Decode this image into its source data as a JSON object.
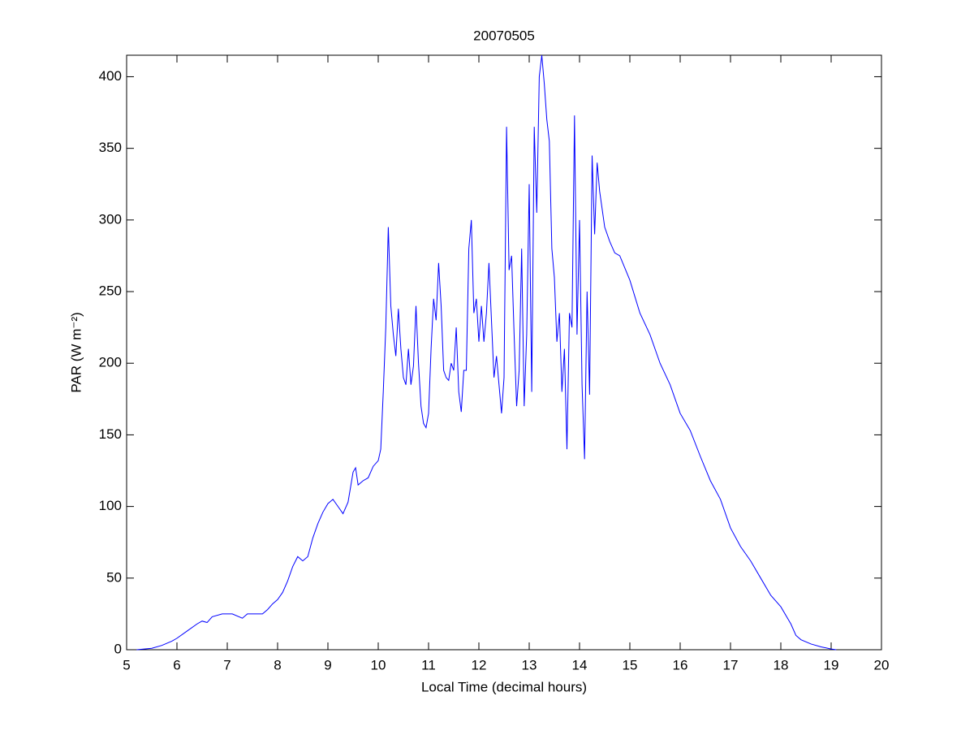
{
  "chart_data": {
    "type": "line",
    "title": "20070505",
    "xlabel": "Local Time (decimal hours)",
    "ylabel": "PAR (W m⁻²)",
    "x": [
      5.2,
      5.5,
      5.7,
      5.9,
      6.0,
      6.2,
      6.4,
      6.5,
      6.6,
      6.7,
      6.9,
      7.1,
      7.3,
      7.4,
      7.6,
      7.7,
      7.8,
      7.9,
      8.0,
      8.1,
      8.2,
      8.3,
      8.4,
      8.5,
      8.6,
      8.7,
      8.8,
      8.9,
      9.0,
      9.1,
      9.2,
      9.3,
      9.4,
      9.5,
      9.55,
      9.6,
      9.7,
      9.8,
      9.9,
      10.0,
      10.05,
      10.1,
      10.15,
      10.2,
      10.25,
      10.3,
      10.35,
      10.4,
      10.45,
      10.5,
      10.55,
      10.6,
      10.65,
      10.7,
      10.75,
      10.8,
      10.85,
      10.9,
      10.95,
      11.0,
      11.05,
      11.1,
      11.15,
      11.2,
      11.25,
      11.3,
      11.35,
      11.4,
      11.45,
      11.5,
      11.55,
      11.6,
      11.65,
      11.7,
      11.75,
      11.8,
      11.85,
      11.9,
      11.95,
      12.0,
      12.05,
      12.1,
      12.15,
      12.2,
      12.25,
      12.3,
      12.35,
      12.4,
      12.45,
      12.5,
      12.55,
      12.6,
      12.65,
      12.7,
      12.75,
      12.8,
      12.85,
      12.9,
      12.95,
      13.0,
      13.05,
      13.1,
      13.15,
      13.2,
      13.25,
      13.3,
      13.35,
      13.4,
      13.45,
      13.5,
      13.55,
      13.6,
      13.65,
      13.7,
      13.75,
      13.8,
      13.85,
      13.9,
      13.95,
      14.0,
      14.05,
      14.1,
      14.15,
      14.2,
      14.25,
      14.3,
      14.35,
      14.4,
      14.5,
      14.6,
      14.7,
      14.8,
      15.0,
      15.2,
      15.4,
      15.6,
      15.8,
      16.0,
      16.2,
      16.4,
      16.6,
      16.8,
      17.0,
      17.2,
      17.4,
      17.6,
      17.8,
      18.0,
      18.2,
      18.3,
      18.4,
      18.6,
      18.8,
      19.0,
      19.1
    ],
    "values": [
      0,
      1,
      3,
      6,
      8,
      13,
      18,
      20,
      19,
      23,
      25,
      25,
      22,
      25,
      25,
      25,
      28,
      32,
      35,
      40,
      48,
      58,
      65,
      62,
      65,
      78,
      88,
      96,
      102,
      105,
      100,
      95,
      103,
      124,
      127,
      115,
      118,
      120,
      128,
      132,
      140,
      180,
      225,
      295,
      240,
      220,
      205,
      238,
      210,
      190,
      185,
      210,
      185,
      198,
      240,
      200,
      170,
      158,
      155,
      165,
      210,
      245,
      230,
      270,
      240,
      195,
      190,
      188,
      200,
      195,
      225,
      180,
      166,
      195,
      195,
      280,
      300,
      235,
      245,
      215,
      240,
      215,
      235,
      270,
      230,
      190,
      205,
      185,
      165,
      190,
      365,
      265,
      275,
      220,
      170,
      195,
      280,
      170,
      220,
      325,
      180,
      365,
      305,
      400,
      415,
      395,
      370,
      355,
      280,
      260,
      215,
      235,
      180,
      210,
      140,
      235,
      225,
      373,
      220,
      300,
      185,
      133,
      250,
      178,
      345,
      290,
      340,
      320,
      295,
      285,
      277,
      275,
      258,
      235,
      220,
      200,
      185,
      165,
      153,
      135,
      118,
      105,
      85,
      72,
      62,
      50,
      38,
      30,
      18,
      10,
      7,
      4,
      2,
      0.5,
      0
    ],
    "color": "#0000ff",
    "xlim": [
      5,
      20
    ],
    "xticks": [
      5,
      6,
      7,
      8,
      9,
      10,
      11,
      12,
      13,
      14,
      15,
      16,
      17,
      18,
      19,
      20
    ],
    "ylim": [
      0,
      415
    ],
    "yticks": [
      0,
      50,
      100,
      150,
      200,
      250,
      300,
      350,
      400
    ]
  }
}
